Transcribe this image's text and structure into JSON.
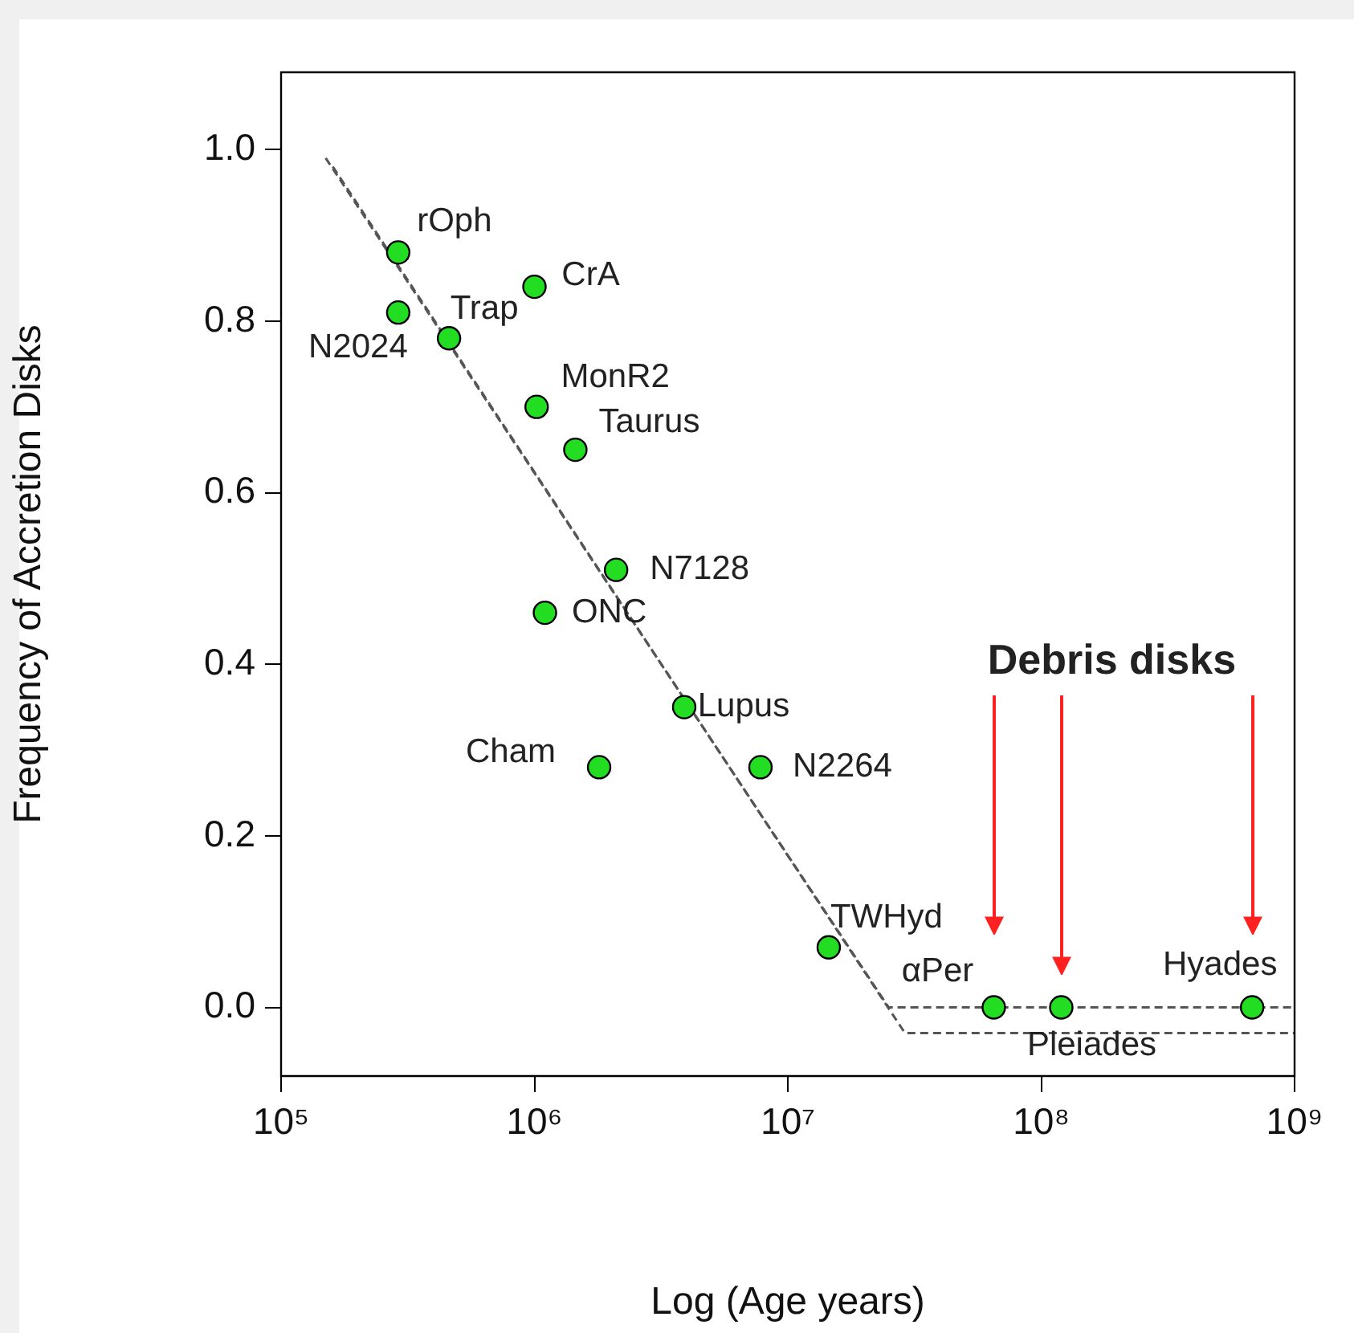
{
  "chart_data": {
    "type": "scatter",
    "xlabel": "Log (Age years)",
    "ylabel": "Frequency of Accretion Disks",
    "log": "x",
    "grid": false,
    "legend": false,
    "xlim": [
      100000,
      1000000000
    ],
    "xticks": [
      {
        "value": 100000,
        "label": "10⁵"
      },
      {
        "value": 1000000,
        "label": "10⁶"
      },
      {
        "value": 10000000,
        "label": "10⁷"
      },
      {
        "value": 100000000,
        "label": "10⁸"
      },
      {
        "value": 1000000000,
        "label": "10⁹"
      }
    ],
    "ylim": [
      -0.08,
      1.09
    ],
    "yticks": [
      {
        "value": 0,
        "label": "0.0"
      },
      {
        "value": 0.2,
        "label": "0.2"
      },
      {
        "value": 0.4,
        "label": "0.4"
      },
      {
        "value": 0.6,
        "label": "0.6"
      },
      {
        "value": 0.8,
        "label": "0.8"
      },
      {
        "value": 1,
        "label": "1.0"
      }
    ],
    "series": [
      {
        "color": "#22dd22",
        "marker": "circle",
        "x": [
          290000,
          290000,
          460000,
          1000000,
          1020000,
          1450000,
          2100000,
          1100000,
          3900000,
          1800000,
          7800000,
          14500000,
          65000000,
          120000000,
          680000000
        ],
        "values": [
          0.88,
          0.81,
          0.78,
          0.84,
          0.7,
          0.65,
          0.51,
          0.46,
          0.35,
          0.28,
          0.28,
          0.07,
          0,
          0,
          0
        ],
        "value_labels": [
          "rOph",
          "N2024",
          "Trap",
          "CrA",
          "MonR2",
          "Taurus",
          "N7128",
          "ONC",
          "Lupus",
          "Cham",
          "N2264",
          "TWHyd",
          "αPer",
          "Pleiades",
          "Hyades"
        ]
      },
      {
        "type": "line",
        "color": "#555555",
        "marker": "none",
        "line_style": "dashed",
        "x": [
          150000,
          25000000,
          1000000000
        ],
        "values": [
          0.99,
          0,
          0
        ]
      },
      {
        "type": "line",
        "color": "#555555",
        "marker": "none",
        "line_style": "dashed",
        "x": [
          160000,
          29000000,
          1000000000
        ],
        "values": [
          0.98,
          -0.03,
          -0.03
        ]
      }
    ],
    "annotations": [
      "Debris disks"
    ]
  }
}
